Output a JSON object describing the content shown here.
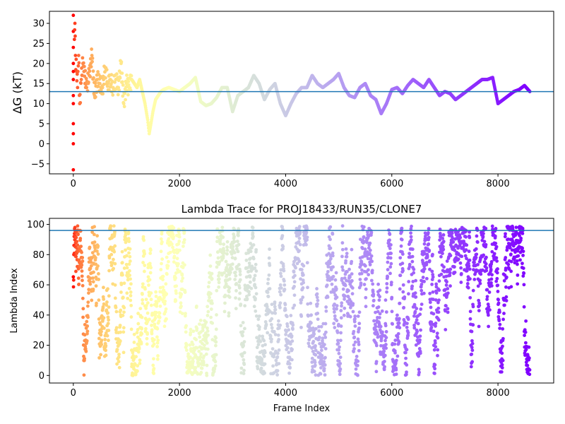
{
  "chart_data": [
    {
      "type": "scatter",
      "title": "",
      "xlabel": "",
      "ylabel": "ΔG (kT)",
      "xlim": [
        -450,
        9050
      ],
      "ylim": [
        -7.5,
        33
      ],
      "xticks": [
        0,
        2000,
        4000,
        6000,
        8000
      ],
      "yticks": [
        -5,
        0,
        5,
        10,
        15,
        20,
        25,
        30
      ],
      "grid": false,
      "hline": 13,
      "hline_color": "#1f77b4",
      "colormap": "rainbow (early frames red → late frames violet)",
      "series": [
        {
          "x": [
            0,
            0,
            0,
            0,
            0,
            0,
            0,
            0,
            0,
            0,
            0,
            0,
            20,
            30,
            40,
            60,
            80,
            100,
            120,
            150,
            180,
            200,
            250,
            300,
            350,
            400,
            450,
            500,
            550,
            600,
            650,
            700,
            750,
            800,
            850,
            900,
            950,
            1000,
            1050,
            1100,
            1150,
            1200,
            1250,
            1300,
            1350,
            1400,
            1430,
            1450,
            1500,
            1550,
            1600,
            1650,
            1700,
            1800,
            1900,
            2000,
            2100,
            2200,
            2300,
            2400,
            2500,
            2600,
            2700,
            2800,
            2900,
            3000,
            3100,
            3200,
            3300,
            3400,
            3500,
            3600,
            3700,
            3800,
            3900,
            4000,
            4100,
            4200,
            4300,
            4400,
            4500,
            4600,
            4700,
            4800,
            4900,
            5000,
            5100,
            5200,
            5300,
            5400,
            5500,
            5600,
            5700,
            5800,
            5900,
            6000,
            6100,
            6200,
            6300,
            6400,
            6500,
            6600,
            6700,
            6800,
            6900,
            7000,
            7100,
            7200,
            7300,
            7400,
            7500,
            7600,
            7700,
            7800,
            7900,
            8000,
            8100,
            8200,
            8300,
            8400,
            8500,
            8600
          ],
          "y": [
            32,
            24,
            20,
            16,
            10,
            5,
            0,
            -6.5,
            28,
            18,
            12,
            2.5,
            26,
            30,
            22,
            18,
            14,
            22,
            10,
            16,
            20,
            18,
            14,
            17,
            22,
            12,
            16,
            15,
            14,
            19,
            15,
            16,
            14,
            16,
            14,
            20,
            10,
            15,
            14,
            16,
            15,
            14,
            16,
            13,
            10,
            6,
            2.5,
            4,
            8,
            11,
            12,
            13,
            13.5,
            14,
            13.5,
            13,
            14,
            15,
            16.5,
            10.5,
            9.5,
            10,
            11.5,
            14,
            14,
            8,
            12,
            13,
            14,
            17,
            15,
            11,
            13.5,
            15,
            10,
            7,
            10,
            12.5,
            14,
            14,
            17,
            15,
            14,
            15,
            16,
            17.5,
            14,
            12,
            11.5,
            14,
            15,
            12,
            11,
            7.5,
            10,
            13.5,
            14,
            12.5,
            14.5,
            16,
            15,
            14,
            16,
            14,
            12,
            13,
            12.5,
            11,
            12,
            13,
            14,
            15,
            16,
            16,
            16.5,
            10,
            11,
            12,
            13,
            13.5,
            14.5,
            13
          ]
        }
      ]
    },
    {
      "type": "scatter",
      "title": "Lambda Trace for PROJ18433/RUN35/CLONE7",
      "xlabel": "Frame Index",
      "ylabel": "Lambda Index",
      "xlim": [
        -450,
        9050
      ],
      "ylim": [
        -5,
        104
      ],
      "xticks": [
        0,
        2000,
        4000,
        6000,
        8000
      ],
      "yticks": [
        0,
        20,
        40,
        60,
        80,
        100
      ],
      "grid": false,
      "hline": 96,
      "hline_color": "#1f77b4",
      "colormap": "rainbow (early frames red → late frames violet)",
      "frames": 8600,
      "lambda_range": [
        0,
        99
      ]
    }
  ]
}
